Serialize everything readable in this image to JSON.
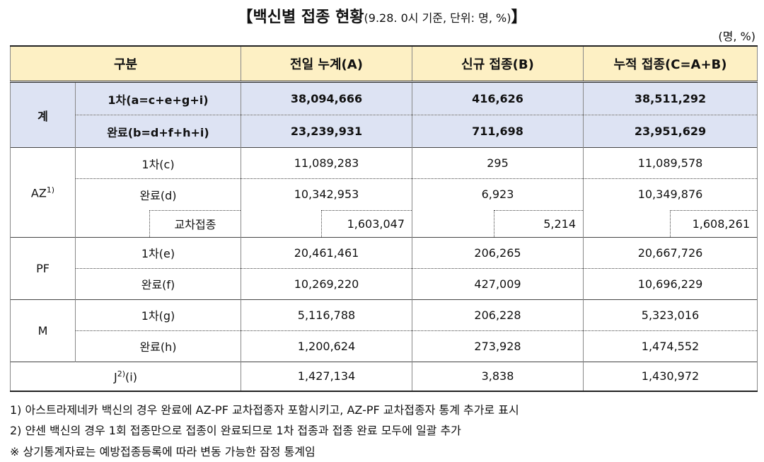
{
  "title": {
    "main": "【백신별 접종 현황",
    "sub": "(9.28. 0시 기준, 단위: 명, %)",
    "close": "】"
  },
  "unit": "(명, %)",
  "table": {
    "header": [
      "구분",
      "전일 누계(A)",
      "신규 접종(B)",
      "누적 접종(C=A+B)"
    ],
    "total": {
      "label": "계",
      "rows": [
        [
          "1차(a=c+e+g+i)",
          "38,094,666",
          "416,626",
          "38,511,292"
        ],
        [
          "완료(b=d+f+h+i)",
          "23,239,931",
          "711,698",
          "23,951,629"
        ]
      ]
    },
    "groups": [
      {
        "label": "AZ",
        "note": "1)",
        "rows": [
          [
            "1차(c)",
            "11,089,283",
            "295",
            "11,089,578"
          ],
          [
            "완료(d)",
            "10,342,953",
            "6,923",
            "10,349,876"
          ]
        ],
        "cross": [
          "교차접종",
          "1,603,047",
          "5,214",
          "1,608,261"
        ]
      },
      {
        "label": "PF",
        "rows": [
          [
            "1차(e)",
            "20,461,461",
            "206,265",
            "20,667,726"
          ],
          [
            "완료(f)",
            "10,269,220",
            "427,009",
            "10,696,229"
          ]
        ]
      },
      {
        "label": "M",
        "rows": [
          [
            "1차(g)",
            "5,116,788",
            "206,228",
            "5,323,016"
          ],
          [
            "완료(h)",
            "1,200,624",
            "273,928",
            "1,474,552"
          ]
        ]
      }
    ],
    "j": {
      "label": "J",
      "note": "2)",
      "suffix": "(i)",
      "values": [
        "1,427,134",
        "3,838",
        "1,430,972"
      ]
    }
  },
  "footnotes": [
    "1) 아스트라제네카 백신의 경우 완료에 AZ-PF 교차접종자 포함시키고, AZ-PF 교차접종자 통계 추가로 표시",
    "2) 얀센 백신의 경우 1회 접종만으로 접종이 완료되므로 1차 접종과 접종 완료 모두에 일괄 추가",
    "※ 상기통계자료는 예방접종등록에 따라 변동 가능한 잠정 통계임"
  ]
}
